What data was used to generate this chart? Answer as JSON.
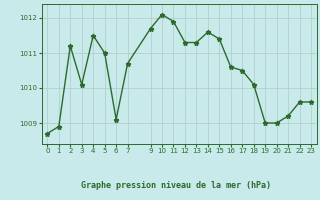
{
  "x": [
    0,
    1,
    2,
    3,
    4,
    5,
    6,
    7,
    9,
    10,
    11,
    12,
    13,
    14,
    15,
    16,
    17,
    18,
    19,
    20,
    21,
    22,
    23
  ],
  "y": [
    1008.7,
    1008.9,
    1011.2,
    1010.1,
    1011.5,
    1011.0,
    1009.1,
    1010.7,
    1011.7,
    1012.1,
    1011.9,
    1011.3,
    1011.3,
    1011.6,
    1011.4,
    1010.6,
    1010.5,
    1010.1,
    1009.0,
    1009.0,
    1009.2,
    1009.6,
    1009.6
  ],
  "line_color": "#2d6a2d",
  "marker": "*",
  "bg_color": "#c8eaea",
  "grid_color": "#b0c8c8",
  "ylabel_ticks": [
    1009,
    1010,
    1011,
    1012
  ],
  "xlabel_ticks": [
    0,
    1,
    2,
    3,
    4,
    5,
    6,
    7,
    9,
    10,
    11,
    12,
    13,
    14,
    15,
    16,
    17,
    18,
    19,
    20,
    21,
    22,
    23
  ],
  "xlabel": "Graphe pression niveau de la mer (hPa)",
  "text_color": "#2d6a2d",
  "ylim": [
    1008.4,
    1012.4
  ],
  "xlim": [
    -0.5,
    23.5
  ]
}
